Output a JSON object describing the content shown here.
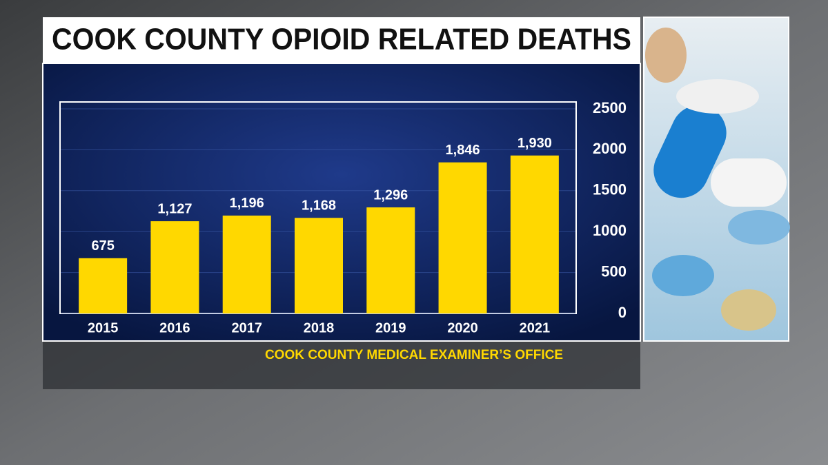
{
  "chart_data": {
    "type": "bar",
    "title": "COOK COUNTY OPIOID RELATED DEATHS",
    "source": "COOK COUNTY MEDICAL EXAMINER’S OFFICE",
    "categories": [
      "2015",
      "2016",
      "2017",
      "2018",
      "2019",
      "2020",
      "2021"
    ],
    "values": [
      675,
      1127,
      1196,
      1168,
      1296,
      1846,
      1930
    ],
    "value_labels": [
      "675",
      "1,127",
      "1,196",
      "1,168",
      "1,296",
      "1,846",
      "1,930"
    ],
    "color": "#ffd800",
    "ylim": [
      0,
      2500
    ],
    "yticks": [
      0,
      500,
      1000,
      1500,
      2000,
      2500
    ],
    "grid": true
  }
}
